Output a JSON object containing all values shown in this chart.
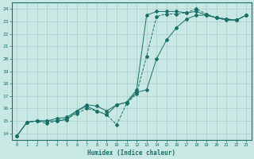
{
  "xlabel": "Humidex (Indice chaleur)",
  "xlim": [
    -0.5,
    23.5
  ],
  "ylim": [
    13.5,
    24.5
  ],
  "xticks": [
    0,
    1,
    2,
    3,
    4,
    5,
    6,
    7,
    8,
    9,
    10,
    11,
    12,
    13,
    14,
    15,
    16,
    17,
    18,
    19,
    20,
    21,
    22,
    23
  ],
  "yticks": [
    14,
    15,
    16,
    17,
    18,
    19,
    20,
    21,
    22,
    23,
    24
  ],
  "bg_color": "#c8e8e4",
  "grid_color": "#a8cccc",
  "line_color": "#1a7068",
  "line1_x": [
    0,
    1,
    2,
    3,
    4,
    5,
    6,
    7,
    8,
    9,
    10,
    11,
    12,
    13,
    14,
    15,
    16,
    17,
    18,
    19,
    20,
    21,
    22,
    23
  ],
  "line1_y": [
    13.8,
    14.9,
    15.0,
    15.0,
    15.0,
    15.1,
    15.8,
    16.2,
    15.8,
    15.5,
    16.3,
    16.5,
    17.3,
    17.5,
    20.0,
    21.5,
    22.5,
    23.2,
    23.5,
    23.5,
    23.3,
    23.1,
    23.1,
    23.5
  ],
  "line1_style": "-",
  "line2_x": [
    0,
    1,
    2,
    3,
    4,
    5,
    6,
    7,
    8,
    9,
    10,
    11,
    12,
    13,
    14,
    15,
    16,
    17,
    18,
    19,
    20,
    21,
    22,
    23
  ],
  "line2_y": [
    13.8,
    14.9,
    15.0,
    14.8,
    15.0,
    15.2,
    15.6,
    16.0,
    15.8,
    15.5,
    14.7,
    16.4,
    17.2,
    20.2,
    23.4,
    23.6,
    23.6,
    23.7,
    24.0,
    23.6,
    23.3,
    23.2,
    23.1,
    23.5
  ],
  "line2_style": "--",
  "line3_x": [
    0,
    1,
    2,
    3,
    4,
    5,
    6,
    7,
    8,
    9,
    10,
    11,
    12,
    13,
    14,
    15,
    16,
    17,
    18,
    19,
    20,
    21,
    22,
    23
  ],
  "line3_y": [
    13.8,
    14.9,
    15.0,
    15.0,
    15.2,
    15.3,
    15.8,
    16.3,
    16.2,
    15.8,
    16.3,
    16.5,
    17.5,
    23.5,
    23.8,
    23.8,
    23.8,
    23.7,
    23.8,
    23.5,
    23.3,
    23.2,
    23.1,
    23.5
  ],
  "line3_style": "-"
}
